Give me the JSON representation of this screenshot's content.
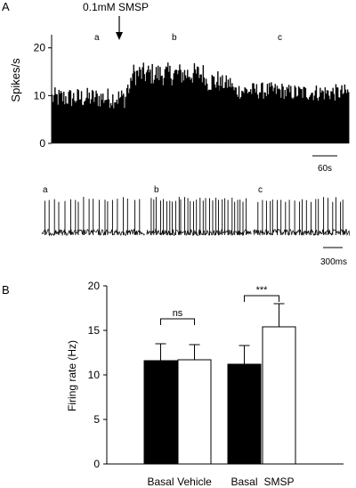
{
  "panels": {
    "a_label": "A",
    "b_label": "B"
  },
  "chart_data": [
    {
      "type": "bar",
      "panel": "A",
      "description_kind": "firing-rate histogram (spikes per second over time)",
      "ylabel": "Spikes/s",
      "yticks": [
        0,
        10,
        20
      ],
      "ylim": [
        0,
        22
      ],
      "annotation": "0.1mM SMSP",
      "epoch_labels": [
        "a",
        "b",
        "c"
      ],
      "scalebar": "60s",
      "segments": [
        {
          "name": "a",
          "mean": 9.5,
          "spread": 2.2
        },
        {
          "name": "b",
          "mean": 14.5,
          "spread": 2.4
        },
        {
          "name": "c",
          "mean": 11.0,
          "spread": 1.8
        }
      ],
      "color": "#000000"
    },
    {
      "type": "line",
      "panel": "A",
      "description_kind": "raw spike traces",
      "trace_labels": [
        "a",
        "b",
        "c"
      ],
      "spike_counts": [
        20,
        32,
        22
      ],
      "scalebar": "300ms",
      "color": "#000000"
    },
    {
      "type": "bar",
      "panel": "B",
      "categories": [
        "Basal",
        "Vehicle",
        "Basal",
        "SMSP"
      ],
      "values": [
        11.6,
        11.7,
        11.2,
        15.4
      ],
      "errors": [
        1.9,
        1.7,
        2.1,
        2.6
      ],
      "fills": [
        "#000000",
        "#ffffff",
        "#000000",
        "#ffffff"
      ],
      "ylabel": "Firing rate (Hz)",
      "yticks": [
        0,
        5,
        10,
        15,
        20
      ],
      "ylim": [
        0,
        20
      ],
      "significance": [
        {
          "pair": [
            0,
            1
          ],
          "label": "ns"
        },
        {
          "pair": [
            2,
            3
          ],
          "label": "***"
        }
      ]
    }
  ]
}
